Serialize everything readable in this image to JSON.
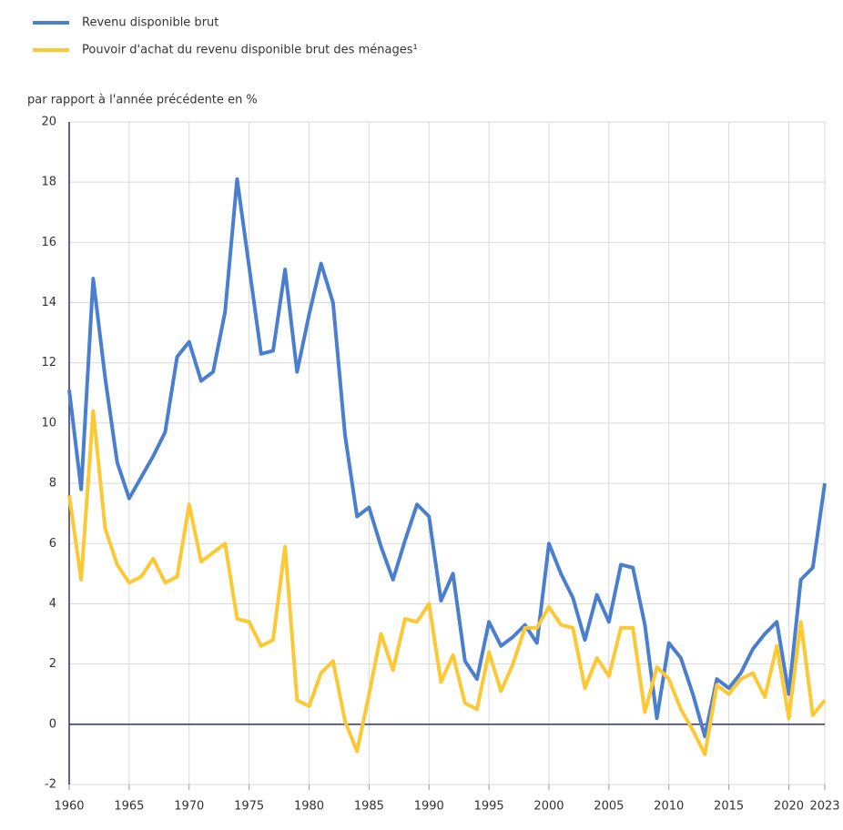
{
  "chart_data": {
    "type": "line",
    "ylabel": "par rapport à l'année précédente en %",
    "x": [
      1960,
      1961,
      1962,
      1963,
      1964,
      1965,
      1966,
      1967,
      1968,
      1969,
      1970,
      1971,
      1972,
      1973,
      1974,
      1975,
      1976,
      1977,
      1978,
      1979,
      1980,
      1981,
      1982,
      1983,
      1984,
      1985,
      1986,
      1987,
      1988,
      1989,
      1990,
      1991,
      1992,
      1993,
      1994,
      1995,
      1996,
      1997,
      1998,
      1999,
      2000,
      2001,
      2002,
      2003,
      2004,
      2005,
      2006,
      2007,
      2008,
      2009,
      2010,
      2011,
      2012,
      2013,
      2014,
      2015,
      2016,
      2017,
      2018,
      2019,
      2020,
      2021,
      2022,
      2023
    ],
    "series": [
      {
        "name": "Revenu disponible brut",
        "color": "#4a7fcf",
        "values": [
          11.1,
          7.8,
          14.8,
          11.5,
          8.7,
          7.5,
          8.2,
          8.9,
          9.7,
          12.2,
          12.7,
          11.4,
          11.7,
          13.7,
          18.1,
          15.2,
          12.3,
          12.4,
          15.1,
          11.7,
          13.6,
          15.3,
          14.0,
          9.6,
          6.9,
          7.2,
          5.9,
          4.8,
          6.1,
          7.3,
          6.9,
          4.1,
          5.0,
          2.1,
          1.5,
          3.4,
          2.6,
          2.9,
          3.3,
          2.7,
          6.0,
          5.0,
          4.2,
          2.8,
          4.3,
          3.4,
          5.3,
          5.2,
          3.3,
          0.2,
          2.7,
          2.2,
          1.0,
          -0.4,
          1.5,
          1.2,
          1.7,
          2.5,
          3.0,
          3.4,
          1.0,
          4.8,
          5.2,
          8.0
        ]
      },
      {
        "name": "Pouvoir d'achat du revenu disponible brut des ménages¹",
        "color": "#fcc934",
        "values": [
          7.6,
          4.8,
          10.4,
          6.5,
          5.3,
          4.7,
          4.9,
          5.5,
          4.7,
          4.9,
          7.3,
          5.4,
          5.7,
          6.0,
          3.5,
          3.4,
          2.6,
          2.8,
          5.9,
          0.8,
          0.6,
          1.7,
          2.1,
          0.1,
          -0.9,
          1.0,
          3.0,
          1.8,
          3.5,
          3.4,
          4.0,
          1.4,
          2.3,
          0.7,
          0.5,
          2.4,
          1.1,
          2.0,
          3.2,
          3.2,
          3.9,
          3.3,
          3.2,
          1.2,
          2.2,
          1.6,
          3.2,
          3.2,
          0.4,
          1.9,
          1.5,
          0.5,
          -0.2,
          -1.0,
          1.3,
          1.0,
          1.5,
          1.7,
          0.9,
          2.6,
          0.2,
          3.4,
          0.3,
          0.8
        ]
      }
    ],
    "xlim": [
      1960,
      2023
    ],
    "xticks": [
      1960,
      1965,
      1970,
      1975,
      1980,
      1985,
      1990,
      1995,
      2000,
      2005,
      2010,
      2015,
      2020,
      2023
    ],
    "ylim": [
      -2,
      20
    ],
    "yticks": [
      -2,
      0,
      2,
      4,
      6,
      8,
      10,
      12,
      14,
      16,
      18,
      20
    ],
    "grid": true,
    "legend": "top-left"
  }
}
